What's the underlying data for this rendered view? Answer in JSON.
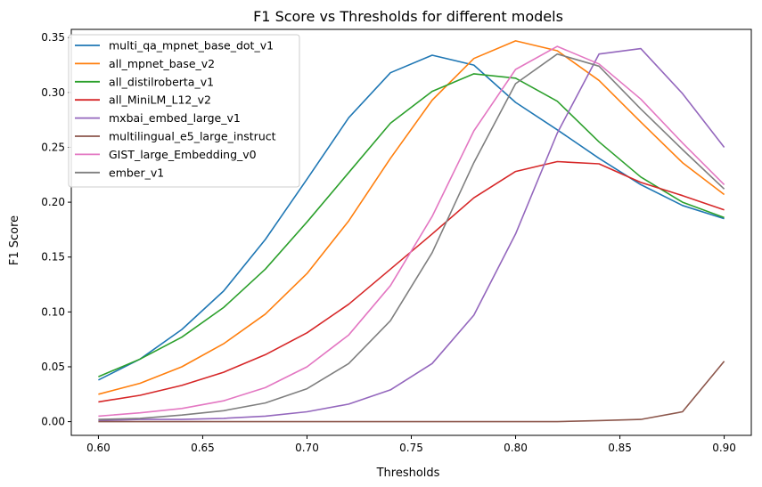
{
  "chart_data": {
    "type": "line",
    "title": "F1 Score vs Thresholds for different models",
    "xlabel": "Thresholds",
    "ylabel": "F1 Score",
    "xlim": [
      0.587,
      0.913
    ],
    "ylim": [
      -0.0125,
      0.3575
    ],
    "xticks": [
      0.6,
      0.65,
      0.7,
      0.75,
      0.8,
      0.85,
      0.9
    ],
    "xtick_labels": [
      "0.60",
      "0.65",
      "0.70",
      "0.75",
      "0.80",
      "0.85",
      "0.90"
    ],
    "yticks": [
      0.0,
      0.05,
      0.1,
      0.15,
      0.2,
      0.25,
      0.3,
      0.35
    ],
    "ytick_labels": [
      "0.00",
      "0.05",
      "0.10",
      "0.15",
      "0.20",
      "0.25",
      "0.30",
      "0.35"
    ],
    "grid": false,
    "legend_position": "top-left",
    "x": [
      0.6,
      0.62,
      0.64,
      0.66,
      0.68,
      0.7,
      0.72,
      0.74,
      0.76,
      0.78,
      0.8,
      0.82,
      0.84,
      0.86,
      0.88,
      0.9
    ],
    "series": [
      {
        "name": "multi_qa_mpnet_base_dot_v1",
        "color": "#1f77b4",
        "values": [
          0.038,
          0.057,
          0.084,
          0.119,
          0.166,
          0.221,
          0.277,
          0.318,
          0.334,
          0.325,
          0.291,
          0.266,
          0.24,
          0.216,
          0.197,
          0.185
        ]
      },
      {
        "name": "all_mpnet_base_v2",
        "color": "#ff7f0e",
        "values": [
          0.025,
          0.035,
          0.05,
          0.071,
          0.098,
          0.135,
          0.183,
          0.24,
          0.293,
          0.331,
          0.347,
          0.338,
          0.311,
          0.273,
          0.236,
          0.207
        ]
      },
      {
        "name": "all_distilroberta_v1",
        "color": "#2ca02c",
        "values": [
          0.041,
          0.057,
          0.077,
          0.104,
          0.139,
          0.182,
          0.227,
          0.272,
          0.301,
          0.317,
          0.313,
          0.292,
          0.255,
          0.223,
          0.2,
          0.186
        ]
      },
      {
        "name": "all_MiniLM_L12_v2",
        "color": "#d62728",
        "values": [
          0.018,
          0.024,
          0.033,
          0.045,
          0.061,
          0.081,
          0.107,
          0.139,
          0.171,
          0.204,
          0.228,
          0.237,
          0.235,
          0.218,
          0.206,
          0.193
        ]
      },
      {
        "name": "mxbai_embed_large_v1",
        "color": "#9467bd",
        "values": [
          0.001,
          0.002,
          0.002,
          0.003,
          0.005,
          0.009,
          0.016,
          0.029,
          0.053,
          0.097,
          0.171,
          0.263,
          0.335,
          0.34,
          0.299,
          0.25
        ]
      },
      {
        "name": "multilingual_e5_large_instruct",
        "color": "#8c564b",
        "values": [
          0.0,
          0.0,
          0.0,
          0.0,
          0.0,
          0.0,
          0.0,
          0.0,
          0.0,
          0.0,
          0.0,
          0.0,
          0.001,
          0.002,
          0.009,
          0.055
        ]
      },
      {
        "name": "GIST_large_Embedding_v0",
        "color": "#e377c2",
        "values": [
          0.005,
          0.008,
          0.012,
          0.019,
          0.031,
          0.05,
          0.079,
          0.124,
          0.187,
          0.265,
          0.321,
          0.342,
          0.326,
          0.294,
          0.254,
          0.216
        ]
      },
      {
        "name": "ember_v1",
        "color": "#7f7f7f",
        "values": [
          0.002,
          0.003,
          0.006,
          0.01,
          0.017,
          0.03,
          0.053,
          0.092,
          0.154,
          0.236,
          0.308,
          0.335,
          0.324,
          0.285,
          0.248,
          0.212
        ]
      }
    ]
  }
}
